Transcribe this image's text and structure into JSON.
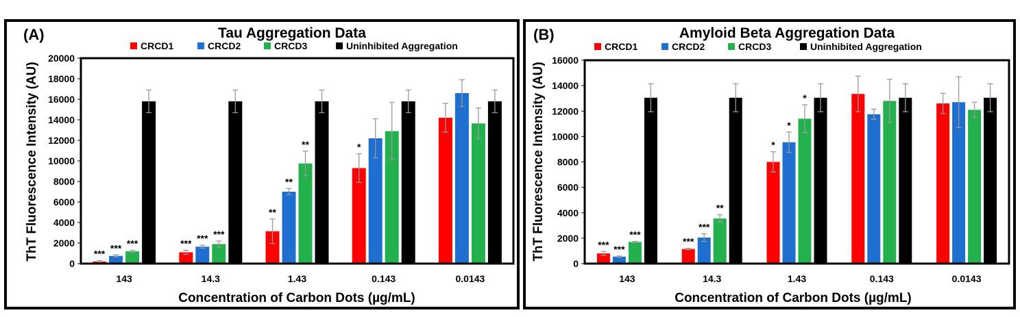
{
  "colors": {
    "CRCD1": "#ff0000",
    "CRCD2": "#1f6fd1",
    "CRCD3": "#22b14c",
    "Uninhibited Aggregation": "#000000",
    "error_bar": "#999999"
  },
  "chart_data": [
    {
      "type": "bar",
      "panel_label": "(A)",
      "title": "Tau Aggregation Data",
      "xlabel": "Concentration of Carbon Dots (µg/mL)",
      "ylabel": "ThT Fluorescence Intensity (AU)",
      "ylim": [
        0,
        20000
      ],
      "yticks": [
        0,
        2000,
        4000,
        6000,
        8000,
        10000,
        12000,
        14000,
        16000,
        18000,
        20000
      ],
      "legend_position": "top",
      "categories": [
        "143",
        "14.3",
        "1.43",
        "0.143",
        "0.0143"
      ],
      "series": [
        {
          "name": "CRCD1",
          "values": [
            200,
            1100,
            3150,
            9300,
            14200
          ],
          "errors": [
            100,
            200,
            1200,
            1400,
            1400
          ],
          "significance": [
            "***",
            "***",
            "**",
            "*",
            ""
          ]
        },
        {
          "name": "CRCD2",
          "values": [
            750,
            1650,
            7000,
            12200,
            16600
          ],
          "errors": [
            100,
            150,
            300,
            1900,
            1300
          ],
          "significance": [
            "***",
            "***",
            "**",
            "",
            ""
          ]
        },
        {
          "name": "CRCD3",
          "values": [
            1200,
            1900,
            9750,
            12900,
            13650
          ],
          "errors": [
            100,
            300,
            1200,
            2800,
            1500
          ],
          "significance": [
            "***",
            "***",
            "**",
            "",
            ""
          ]
        },
        {
          "name": "Uninhibited Aggregation",
          "values": [
            15800,
            15800,
            15800,
            15800,
            15800
          ],
          "errors": [
            1100,
            1100,
            1100,
            1100,
            1100
          ],
          "significance": [
            "",
            "",
            "",
            "",
            ""
          ]
        }
      ]
    },
    {
      "type": "bar",
      "panel_label": "(B)",
      "title": "Amyloid Beta Aggregation Data",
      "xlabel": "Concentration of Carbon Dots (µg/mL)",
      "ylabel": "ThT Fluorescence Intensity (AU)",
      "ylim": [
        0,
        16000
      ],
      "yticks": [
        0,
        2000,
        4000,
        6000,
        8000,
        10000,
        12000,
        14000,
        16000
      ],
      "legend_position": "top",
      "categories": [
        "143",
        "14.3",
        "1.43",
        "0.143",
        "0.0143"
      ],
      "series": [
        {
          "name": "CRCD1",
          "values": [
            800,
            1150,
            8000,
            13350,
            12600
          ],
          "errors": [
            150,
            50,
            800,
            1400,
            800
          ],
          "significance": [
            "***",
            "***",
            "*",
            "",
            ""
          ]
        },
        {
          "name": "CRCD2",
          "values": [
            550,
            2050,
            9550,
            11750,
            12700
          ],
          "errors": [
            50,
            300,
            800,
            400,
            2000
          ],
          "significance": [
            "***",
            "***",
            "*",
            "",
            ""
          ]
        },
        {
          "name": "CRCD3",
          "values": [
            1700,
            3550,
            11400,
            12800,
            12100
          ],
          "errors": [
            50,
            300,
            1100,
            1700,
            600
          ],
          "significance": [
            "***",
            "**",
            "*",
            "",
            ""
          ]
        },
        {
          "name": "Uninhibited Aggregation",
          "values": [
            13050,
            13050,
            13050,
            13050,
            13050
          ],
          "errors": [
            1100,
            1100,
            1100,
            1100,
            1100
          ],
          "significance": [
            "",
            "",
            "",
            "",
            ""
          ]
        }
      ]
    }
  ]
}
